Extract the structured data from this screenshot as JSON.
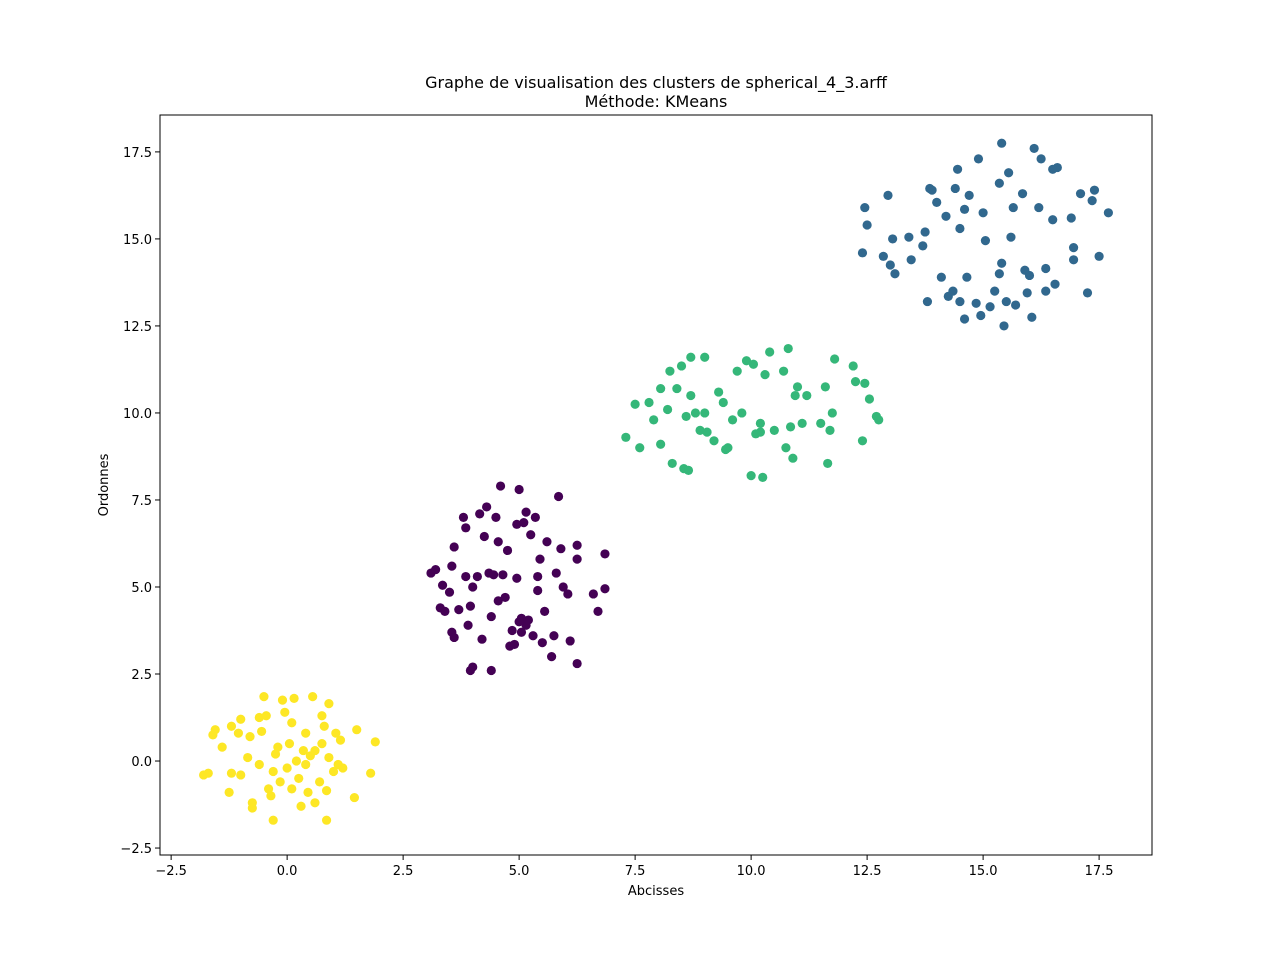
{
  "chart_data": {
    "type": "scatter",
    "title": "Graphe de visualisation des clusters de spherical_4_3.arff",
    "subtitle": "Méthode: KMeans",
    "x_label": "Abcisses",
    "y_label": "Ordonnes",
    "xlim": [
      -2.74,
      18.64
    ],
    "ylim": [
      -2.7,
      18.56
    ],
    "xticks": [
      {
        "value": -2.5,
        "label": "−2.5"
      },
      {
        "value": 0,
        "label": "0.0"
      },
      {
        "value": 2.5,
        "label": "2.5"
      },
      {
        "value": 5,
        "label": "5.0"
      },
      {
        "value": 7.5,
        "label": "7.5"
      },
      {
        "value": 10,
        "label": "10.0"
      },
      {
        "value": 12.5,
        "label": "12.5"
      },
      {
        "value": 15,
        "label": "15.0"
      },
      {
        "value": 17.5,
        "label": "17.5"
      }
    ],
    "yticks": [
      {
        "value": -2.5,
        "label": "−2.5"
      },
      {
        "value": 0,
        "label": "0.0"
      },
      {
        "value": 2.5,
        "label": "2.5"
      },
      {
        "value": 5,
        "label": "5.0"
      },
      {
        "value": 7.5,
        "label": "7.5"
      },
      {
        "value": 10,
        "label": "10.0"
      },
      {
        "value": 12.5,
        "label": "12.5"
      },
      {
        "value": 15,
        "label": "15.0"
      },
      {
        "value": 17.5,
        "label": "17.5"
      }
    ],
    "grid": false,
    "series": [
      {
        "color": "#fde725",
        "x": [
          -1.8,
          -1.7,
          -1.6,
          -1.55,
          -1.4,
          -1.25,
          -1.2,
          -1.2,
          -1.0,
          -1.0,
          -1.05,
          -0.85,
          -0.8,
          -0.75,
          -0.75,
          -0.6,
          -0.55,
          -0.5,
          -0.45,
          -0.4,
          -0.35,
          -0.3,
          -0.25,
          -0.3,
          -0.2,
          -0.15,
          -0.1,
          -0.05,
          0.0,
          0.05,
          0.1,
          0.1,
          0.15,
          0.25,
          0.3,
          0.35,
          0.4,
          0.4,
          0.45,
          0.5,
          0.55,
          0.6,
          0.7,
          0.75,
          0.75,
          0.8,
          0.85,
          0.85,
          0.9,
          0.9,
          1.0,
          1.05,
          1.1,
          1.15,
          1.2,
          1.45,
          1.5,
          1.8,
          1.9,
          0.6,
          -0.6,
          0.2
        ],
        "values": [
          -0.4,
          -0.35,
          0.75,
          0.9,
          0.4,
          -0.9,
          -0.35,
          1.0,
          1.2,
          -0.4,
          0.8,
          0.1,
          0.7,
          -1.2,
          -1.35,
          1.25,
          0.85,
          1.85,
          1.3,
          -0.8,
          -1.0,
          -0.3,
          0.2,
          -1.7,
          0.4,
          -0.6,
          1.75,
          1.4,
          -0.2,
          0.5,
          1.1,
          -0.8,
          1.8,
          -0.5,
          -1.3,
          0.3,
          -0.1,
          0.8,
          -0.9,
          0.15,
          1.85,
          -1.2,
          -0.6,
          0.5,
          1.3,
          1.0,
          -0.85,
          -1.7,
          0.1,
          1.65,
          -0.3,
          0.8,
          -0.1,
          0.6,
          -0.2,
          -1.05,
          0.9,
          -0.35,
          0.55,
          0.3,
          -0.1,
          0.0
        ]
      },
      {
        "color": "#440154",
        "x": [
          3.1,
          3.2,
          3.3,
          3.35,
          3.4,
          3.5,
          3.55,
          3.6,
          3.6,
          3.55,
          3.7,
          3.8,
          3.85,
          3.85,
          3.9,
          3.95,
          3.95,
          4.0,
          4.0,
          4.1,
          4.15,
          4.2,
          4.25,
          4.3,
          4.35,
          4.4,
          4.45,
          4.5,
          4.55,
          4.55,
          4.6,
          4.65,
          4.7,
          4.75,
          4.8,
          4.85,
          4.9,
          4.95,
          4.95,
          5.0,
          5.05,
          5.1,
          5.15,
          5.15,
          5.2,
          5.25,
          5.3,
          5.35,
          5.4,
          5.45,
          5.5,
          5.55,
          5.6,
          5.7,
          5.75,
          5.8,
          5.85,
          5.9,
          5.95,
          6.05,
          6.1,
          6.25,
          6.25,
          6.25,
          6.6,
          6.7,
          6.85,
          6.85,
          5.4,
          4.4,
          5.05,
          5.0
        ],
        "values": [
          5.4,
          5.5,
          4.4,
          5.05,
          4.3,
          4.85,
          3.7,
          3.55,
          6.15,
          5.6,
          4.35,
          7.0,
          6.7,
          5.3,
          3.9,
          4.45,
          2.6,
          2.7,
          5.0,
          5.3,
          7.1,
          3.5,
          6.45,
          7.3,
          5.4,
          2.6,
          5.35,
          7.0,
          6.3,
          4.6,
          7.9,
          5.35,
          4.7,
          6.05,
          3.3,
          3.75,
          3.35,
          5.25,
          6.8,
          7.8,
          4.1,
          6.85,
          3.9,
          7.15,
          4.05,
          6.5,
          3.6,
          7.0,
          4.9,
          5.8,
          3.4,
          4.3,
          6.3,
          3.0,
          3.6,
          5.4,
          7.6,
          6.1,
          5.0,
          4.8,
          3.45,
          2.8,
          5.8,
          6.2,
          4.8,
          4.3,
          5.95,
          4.95,
          5.3,
          4.15,
          3.7,
          4.0
        ]
      },
      {
        "color": "#35b779",
        "x": [
          7.3,
          7.5,
          7.6,
          7.8,
          7.9,
          8.05,
          8.05,
          8.2,
          8.25,
          8.3,
          8.4,
          8.5,
          8.55,
          8.6,
          8.65,
          8.7,
          8.7,
          8.8,
          8.9,
          9.0,
          9.0,
          9.2,
          9.3,
          9.4,
          9.5,
          9.6,
          9.7,
          9.8,
          9.9,
          10.0,
          10.05,
          10.1,
          10.2,
          10.25,
          10.3,
          10.4,
          10.5,
          10.7,
          10.75,
          10.8,
          10.85,
          10.9,
          10.95,
          11.0,
          11.1,
          11.2,
          11.5,
          11.6,
          11.65,
          11.7,
          11.8,
          11.75,
          12.2,
          12.25,
          12.4,
          12.45,
          12.55,
          12.7,
          12.75,
          9.45,
          10.2,
          9.05
        ],
        "values": [
          9.3,
          10.25,
          9.0,
          10.3,
          9.8,
          10.7,
          9.1,
          10.1,
          11.2,
          8.55,
          10.7,
          11.35,
          8.4,
          9.9,
          8.35,
          10.5,
          11.6,
          10.0,
          9.5,
          11.6,
          10.0,
          9.2,
          10.6,
          10.3,
          9.0,
          9.8,
          11.2,
          10.0,
          11.5,
          8.2,
          11.4,
          9.4,
          9.7,
          8.15,
          11.1,
          11.75,
          9.5,
          11.2,
          9.0,
          11.85,
          9.6,
          8.7,
          10.5,
          10.75,
          9.7,
          10.5,
          9.7,
          10.75,
          8.55,
          9.5,
          11.55,
          10.0,
          11.35,
          10.9,
          9.2,
          10.85,
          10.4,
          9.9,
          9.8,
          8.95,
          9.45,
          9.45
        ]
      },
      {
        "color": "#31688e",
        "x": [
          12.4,
          12.45,
          12.5,
          12.85,
          12.95,
          13.0,
          13.1,
          13.05,
          13.4,
          13.45,
          13.75,
          13.7,
          13.8,
          13.85,
          13.9,
          14.0,
          14.1,
          14.2,
          14.25,
          14.35,
          14.4,
          14.45,
          14.5,
          14.5,
          14.6,
          14.6,
          14.65,
          14.7,
          14.85,
          14.9,
          14.95,
          15.0,
          15.05,
          15.15,
          15.25,
          15.35,
          15.4,
          15.4,
          15.45,
          15.5,
          15.55,
          15.6,
          15.65,
          15.7,
          15.85,
          15.9,
          15.95,
          16.0,
          16.05,
          16.1,
          16.2,
          16.25,
          16.35,
          16.35,
          16.5,
          16.5,
          16.55,
          16.6,
          16.9,
          16.95,
          16.95,
          17.1,
          17.25,
          17.35,
          17.4,
          17.5,
          17.7,
          15.35
        ],
        "values": [
          14.6,
          15.9,
          15.4,
          14.5,
          16.25,
          14.25,
          14.0,
          15.0,
          15.05,
          14.4,
          15.2,
          14.8,
          13.2,
          16.45,
          16.4,
          16.05,
          13.9,
          15.65,
          13.35,
          13.5,
          16.45,
          17.0,
          15.3,
          13.2,
          12.7,
          15.85,
          13.9,
          16.25,
          13.15,
          17.3,
          12.8,
          15.75,
          14.95,
          13.05,
          13.5,
          14.0,
          14.3,
          17.75,
          12.5,
          13.2,
          16.9,
          15.05,
          15.9,
          13.1,
          16.3,
          14.1,
          13.45,
          13.95,
          12.75,
          17.6,
          15.9,
          17.3,
          13.5,
          14.15,
          15.55,
          17.0,
          13.7,
          17.05,
          15.6,
          14.75,
          14.4,
          16.3,
          13.45,
          16.1,
          16.4,
          14.5,
          15.75,
          16.6
        ]
      }
    ]
  }
}
